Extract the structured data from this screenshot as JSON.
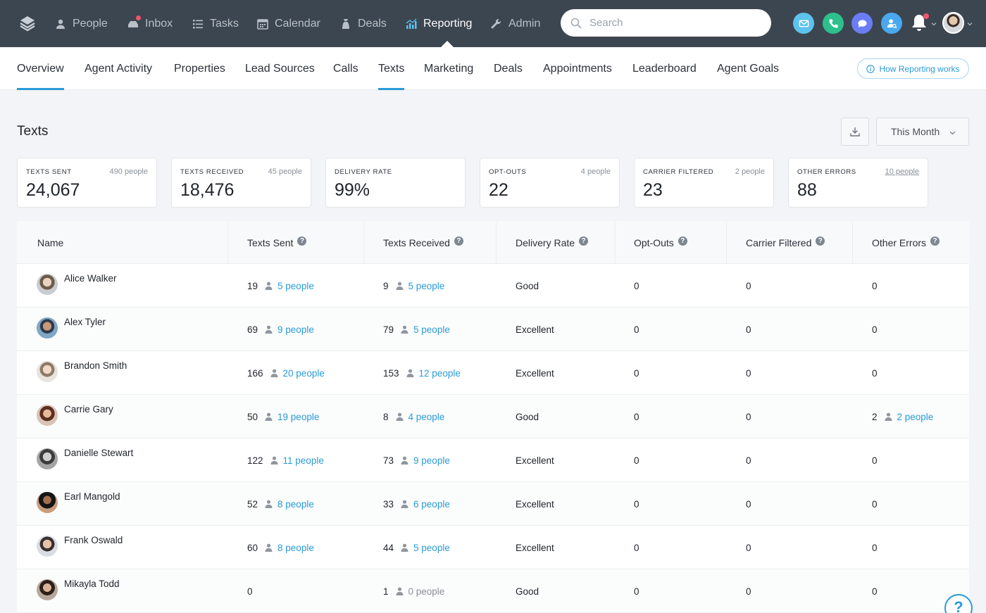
{
  "nav": {
    "items": [
      {
        "label": "People",
        "icon": "person-icon"
      },
      {
        "label": "Inbox",
        "icon": "inbox-icon"
      },
      {
        "label": "Tasks",
        "icon": "list-icon"
      },
      {
        "label": "Calendar",
        "icon": "calendar-icon"
      },
      {
        "label": "Deals",
        "icon": "money-bag-icon"
      },
      {
        "label": "Reporting",
        "icon": "chart-icon"
      },
      {
        "label": "Admin",
        "icon": "wrench-icon"
      }
    ],
    "active": "Reporting",
    "search_placeholder": "Search"
  },
  "subnav": {
    "tabs": [
      "Overview",
      "Agent Activity",
      "Properties",
      "Lead Sources",
      "Calls",
      "Texts",
      "Marketing",
      "Deals",
      "Appointments",
      "Leaderboard",
      "Agent Goals"
    ],
    "underlined": [
      "Overview",
      "Texts"
    ],
    "help_link": "How Reporting works"
  },
  "page": {
    "title": "Texts",
    "period": "This Month"
  },
  "stats": [
    {
      "label": "TEXTS SENT",
      "value": "24,067",
      "sub": "490 people"
    },
    {
      "label": "TEXTS RECEIVED",
      "value": "18,476",
      "sub": "45 people"
    },
    {
      "label": "DELIVERY RATE",
      "value": "99%",
      "sub": ""
    },
    {
      "label": "OPT-OUTS",
      "value": "22",
      "sub": "4 people"
    },
    {
      "label": "CARRIER FILTERED",
      "value": "23",
      "sub": "2 people"
    },
    {
      "label": "OTHER ERRORS",
      "value": "88",
      "sub": "10 people"
    }
  ],
  "table": {
    "columns": [
      "Name",
      "Texts Sent",
      "Texts Received",
      "Delivery Rate",
      "Opt-Outs",
      "Carrier Filtered",
      "Other Errors"
    ],
    "rows": [
      {
        "name": "Alice Walker",
        "sent": "19",
        "sent_people": "5 people",
        "received": "9",
        "received_people": "5 people",
        "rate": "Good",
        "opt": "0",
        "carrier": "0",
        "errors": "0",
        "errors_people": ""
      },
      {
        "name": "Alex Tyler",
        "sent": "69",
        "sent_people": "9 people",
        "received": "79",
        "received_people": "5 people",
        "rate": "Excellent",
        "opt": "0",
        "carrier": "0",
        "errors": "0",
        "errors_people": ""
      },
      {
        "name": "Brandon Smith",
        "sent": "166",
        "sent_people": "20 people",
        "received": "153",
        "received_people": "12 people",
        "rate": "Excellent",
        "opt": "0",
        "carrier": "0",
        "errors": "0",
        "errors_people": ""
      },
      {
        "name": "Carrie Gary",
        "sent": "50",
        "sent_people": "19 people",
        "received": "8",
        "received_people": "4 people",
        "rate": "Good",
        "opt": "0",
        "carrier": "0",
        "errors": "2",
        "errors_people": "2 people"
      },
      {
        "name": "Danielle Stewart",
        "sent": "122",
        "sent_people": "11 people",
        "received": "73",
        "received_people": "9 people",
        "rate": "Excellent",
        "opt": "0",
        "carrier": "0",
        "errors": "0",
        "errors_people": ""
      },
      {
        "name": "Earl Mangold",
        "sent": "52",
        "sent_people": "8 people",
        "received": "33",
        "received_people": "6 people",
        "rate": "Excellent",
        "opt": "0",
        "carrier": "0",
        "errors": "0",
        "errors_people": ""
      },
      {
        "name": "Frank Oswald",
        "sent": "60",
        "sent_people": "8 people",
        "received": "44",
        "received_people": "5 people",
        "rate": "Excellent",
        "opt": "0",
        "carrier": "0",
        "errors": "0",
        "errors_people": ""
      },
      {
        "name": "Mikayla Todd",
        "sent": "0",
        "sent_people": "",
        "received": "1",
        "received_people": "0 people",
        "rate": "Good",
        "opt": "0",
        "carrier": "0",
        "errors": "0",
        "errors_people": ""
      }
    ]
  },
  "colors": {
    "topbar": "#3c4650",
    "accent": "#2a9bd7",
    "email_btn": "#5ec2ee",
    "phone_btn": "#2dc08d",
    "chat_btn": "#6a7df5",
    "contact_btn": "#4aa8ee",
    "notification_dot": "#f2566c"
  }
}
